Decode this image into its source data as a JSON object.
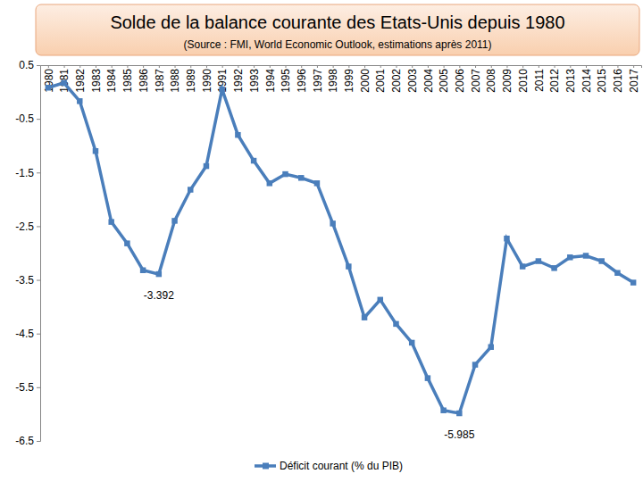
{
  "chart_data": {
    "type": "line",
    "title": "Solde de la balance courante des Etats-Unis depuis 1980",
    "subtitle": "(Source : FMI, World Economic Outlook, estimations après 2011)",
    "categories": [
      "1980",
      "1981",
      "1982",
      "1983",
      "1984",
      "1985",
      "1986",
      "1987",
      "1988",
      "1989",
      "1990",
      "1991",
      "1992",
      "1993",
      "1994",
      "1995",
      "1996",
      "1997",
      "1998",
      "1999",
      "2000",
      "2001",
      "2002",
      "2003",
      "2004",
      "2005",
      "2006",
      "2007",
      "2008",
      "2009",
      "2010",
      "2011",
      "2012",
      "2013",
      "2014",
      "2015",
      "2016",
      "2017"
    ],
    "series": [
      {
        "name": "Déficit courant (% du PIB)",
        "color": "#4a7ebb",
        "marker": "square",
        "line_style": "solid",
        "values": [
          0.08,
          0.17,
          -0.17,
          -1.1,
          -2.42,
          -2.82,
          -3.32,
          -3.392,
          -2.4,
          -1.82,
          -1.38,
          0.05,
          -0.8,
          -1.28,
          -1.7,
          -1.53,
          -1.6,
          -1.7,
          -2.45,
          -3.25,
          -4.2,
          -3.87,
          -4.32,
          -4.67,
          -5.33,
          -5.93,
          -5.985,
          -5.08,
          -4.75,
          -2.73,
          -3.25,
          -3.15,
          -3.28,
          -3.08,
          -3.05,
          -3.15,
          -3.37,
          -3.55
        ]
      }
    ],
    "annotations": [
      {
        "text": "-3.392",
        "x": "1987"
      },
      {
        "text": "-5.985",
        "x": "2006"
      }
    ],
    "ylim": [
      -6.5,
      0.5
    ],
    "yticks": [
      -6.5,
      -5.5,
      -4.5,
      -3.5,
      -2.5,
      -1.5,
      -0.5,
      0.5
    ],
    "grid": false,
    "legend": "bottom"
  }
}
